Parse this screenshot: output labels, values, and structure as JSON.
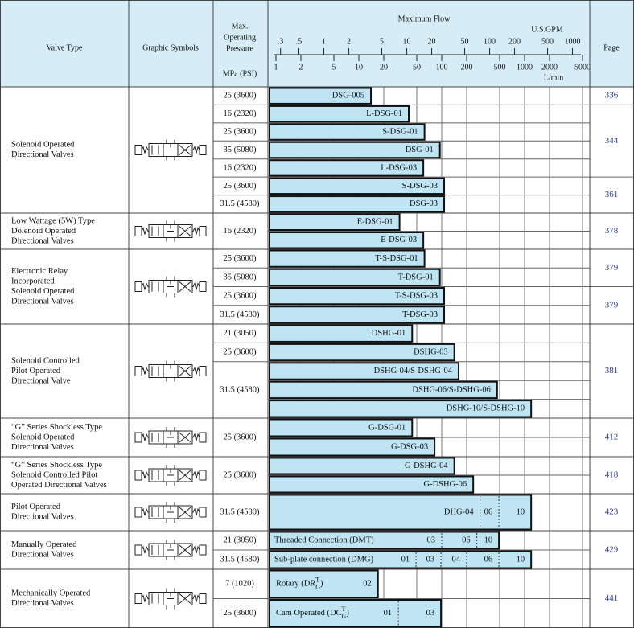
{
  "header": {
    "valve_type": "Valve Type",
    "graphic_symbols": "Graphic Symbols",
    "pressure": [
      "Max.",
      "Operating",
      "Pressure"
    ],
    "pressure_unit": "MPa (PSI)",
    "max_flow": "Maximum Flow",
    "gpm_unit": "U.S.GPM",
    "lpm_unit": "L/min",
    "page": "Page"
  },
  "gpm_ticks": [
    {
      "value": 0.3,
      "label": ".3"
    },
    {
      "value": 0.5,
      "label": ".5"
    },
    1,
    2,
    5,
    10,
    20,
    50,
    100,
    200,
    500,
    1000
  ],
  "lpm_ticks": [
    1,
    2,
    5,
    10,
    20,
    50,
    100,
    200,
    500,
    1000,
    2000,
    5000
  ],
  "groups": [
    {
      "valve_type": [
        "Solenoid Operated",
        "Directional Valves"
      ],
      "pressures": [
        {
          "text": "25 (3600)",
          "rows": 1
        },
        {
          "text": "16 (2320)",
          "rows": 1
        },
        {
          "text": "25 (3600)",
          "rows": 1
        },
        {
          "text": "35 (5080)",
          "rows": 1
        },
        {
          "text": "16 (2320)",
          "rows": 1
        },
        {
          "text": "25 (3600)",
          "rows": 1
        },
        {
          "text": "31.5 (4580)",
          "rows": 1
        }
      ],
      "pages": [
        {
          "text": 336,
          "rows": 1
        },
        {
          "text": 344,
          "rows": 4
        },
        {
          "text": 361,
          "rows": 2
        }
      ],
      "bars": [
        {
          "flow": 14,
          "parts": [
            "DSG-005"
          ]
        },
        {
          "flow": 40,
          "parts": [
            "L-DSG-01"
          ]
        },
        {
          "flow": 62,
          "parts": [
            "S-DSG-01"
          ]
        },
        {
          "flow": 95,
          "parts": [
            "DSG-01"
          ]
        },
        {
          "flow": 60,
          "parts": [
            "L-DSG-03"
          ]
        },
        {
          "flow": 107,
          "parts": [
            "S-DSG-03"
          ]
        },
        {
          "flow": 107,
          "parts": [
            "DSG-03"
          ]
        }
      ]
    },
    {
      "valve_type": [
        "Low Wattage (5W) Type",
        "Dolenoid Operated",
        "Directional Valves"
      ],
      "pressures": [
        {
          "text": "16 (2320)",
          "rows": 2
        }
      ],
      "pages": [
        {
          "text": 378,
          "rows": 2
        }
      ],
      "bars": [
        {
          "flow": 31,
          "parts": [
            "E-DSG-01"
          ]
        },
        {
          "flow": 60,
          "parts": [
            "E-DSG-03"
          ]
        }
      ]
    },
    {
      "valve_type": [
        "Electronic Relay",
        "Incorporated",
        "Solenoid Operated",
        "Directional Valves"
      ],
      "pressures": [
        {
          "text": "25 (3600)",
          "rows": 1
        },
        {
          "text": "35 (5080)",
          "rows": 1
        },
        {
          "text": "25 (3600)",
          "rows": 1
        },
        {
          "text": "31.5 (4580)",
          "rows": 1
        }
      ],
      "pages": [
        {
          "text": 379,
          "rows": 2
        },
        {
          "text": 379,
          "rows": 2
        }
      ],
      "bars": [
        {
          "flow": 62,
          "parts": [
            "T-S-DSG-01"
          ]
        },
        {
          "flow": 95,
          "parts": [
            "T-DSG-01"
          ]
        },
        {
          "flow": 107,
          "parts": [
            "T-S-DSG-03"
          ]
        },
        {
          "flow": 107,
          "parts": [
            "T-DSG-03"
          ]
        }
      ]
    },
    {
      "valve_type": [
        "Solenoid Controlled",
        "Pilot Operated",
        "Directional Valve"
      ],
      "pressures": [
        {
          "text": "21 (3050)",
          "rows": 1
        },
        {
          "text": "25 (3600)",
          "rows": 1
        },
        {
          "text": "31.5 (4580)",
          "rows": 3
        }
      ],
      "pages": [
        {
          "text": 381,
          "rows": 5
        }
      ],
      "bars": [
        {
          "flow": 44,
          "parts": [
            "DSHG-01"
          ]
        },
        {
          "flow": 142,
          "parts": [
            "DSHG-03"
          ]
        },
        {
          "flow": 160,
          "parts": [
            "DSHG-04/S-DSHG-04"
          ]
        },
        {
          "flow": 466,
          "parts": [
            "DSHG-06/S-DSHG-06"
          ]
        },
        {
          "flow": 1200,
          "parts": [
            "DSHG-10/S-DSHG-10"
          ]
        }
      ]
    },
    {
      "valve_type": [
        "“G” Series Shockless Type",
        "Solenoid Operated",
        "Directional Valves"
      ],
      "pressures": [
        {
          "text": "25 (3600)",
          "rows": 2
        }
      ],
      "pages": [
        {
          "text": 412,
          "rows": 2
        }
      ],
      "bars": [
        {
          "flow": 44,
          "parts": [
            "G-DSG-01"
          ]
        },
        {
          "flow": 82,
          "parts": [
            "G-DSG-03"
          ]
        }
      ]
    },
    {
      "valve_type": [
        "“G” Series Shockless Type",
        "Solenoid Controlled Pilot",
        "Operated Directional Valves"
      ],
      "pressures": [
        {
          "text": "25 (3600)",
          "rows": 2
        }
      ],
      "pages": [
        {
          "text": 418,
          "rows": 2
        }
      ],
      "bars": [
        {
          "flow": 142,
          "parts": [
            "G-DSHG-04"
          ]
        },
        {
          "flow": 240,
          "parts": [
            "G-DSHG-06"
          ]
        }
      ]
    },
    {
      "valve_type": [
        "Pilot Operated",
        "Directional Valves"
      ],
      "pressures": [
        {
          "text": "31.5 (4580)",
          "rows": 1
        }
      ],
      "pages": [
        {
          "text": 423,
          "rows": 1
        }
      ],
      "bars": [
        {
          "flow": 1200,
          "parts": [
            "DHG-04",
            "06",
            "10"
          ],
          "breaks": [
            290,
            490
          ]
        }
      ]
    },
    {
      "valve_type": [
        "Manually Operated",
        "Directional Valves"
      ],
      "pressures": [
        {
          "text": "21 (3050)",
          "rows": 1
        },
        {
          "text": "31.5 (4580)",
          "rows": 1
        }
      ],
      "pages": [
        {
          "text": 429,
          "rows": 2
        }
      ],
      "bars": [
        {
          "flow": 490,
          "label": "Threaded Connection (DMT)",
          "parts": [
            "03",
            "06",
            "10"
          ],
          "breaks": [
            100,
            265
          ]
        },
        {
          "flow": 1200,
          "label": "Sub-plate connection (DMG)",
          "parts": [
            "01",
            "03",
            "04",
            "06",
            "10"
          ],
          "breaks": [
            49,
            98,
            200,
            490
          ]
        }
      ]
    },
    {
      "valve_type": [
        "Mechanically Operated",
        "Directional Valves"
      ],
      "pressures": [
        {
          "text": "7 (1020)",
          "rows": 1
        },
        {
          "text": "25 (3600)",
          "rows": 1
        }
      ],
      "pages": [
        {
          "text": 441,
          "rows": 2
        }
      ],
      "bars": [
        {
          "flow": 17,
          "label": {
            "text": "Rotary (DR",
            "sup": "T",
            "sub": "G",
            "tail": ")"
          },
          "parts": [
            "02"
          ]
        },
        {
          "flow": 98,
          "label": {
            "text": "Cam Operated (DC",
            "sup": "T",
            "sub": "G",
            "tail": ")"
          },
          "parts": [
            "01",
            "03"
          ],
          "breaks": [
            30
          ]
        }
      ]
    }
  ]
}
